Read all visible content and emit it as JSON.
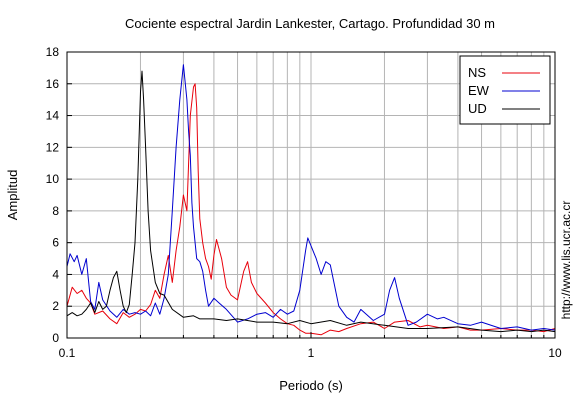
{
  "chart_data": {
    "type": "line",
    "title": "Cociente espectral Jardin Lankester, Cartago. Profundidad 30 m",
    "xlabel": "Periodo (s)",
    "ylabel": "Amplitud",
    "xscale": "log",
    "xlim": [
      0.1,
      10
    ],
    "ylim": [
      0,
      18
    ],
    "x_tick_labels": [
      "0.1",
      "1",
      "10"
    ],
    "y_ticks": [
      0,
      2,
      4,
      6,
      8,
      10,
      12,
      14,
      16,
      18
    ],
    "grid": true,
    "legend_position": "top-right",
    "side_text": "http://www.lis.ucr.ac.cr",
    "colors": {
      "NS": "#e8000b",
      "EW": "#0000d0",
      "UD": "#000000"
    },
    "series": [
      {
        "name": "NS",
        "x": [
          0.1,
          0.105,
          0.11,
          0.115,
          0.12,
          0.125,
          0.13,
          0.14,
          0.15,
          0.16,
          0.17,
          0.18,
          0.19,
          0.2,
          0.21,
          0.22,
          0.23,
          0.24,
          0.25,
          0.26,
          0.27,
          0.28,
          0.29,
          0.3,
          0.31,
          0.32,
          0.33,
          0.335,
          0.34,
          0.345,
          0.35,
          0.36,
          0.37,
          0.38,
          0.39,
          0.4,
          0.41,
          0.43,
          0.45,
          0.47,
          0.5,
          0.53,
          0.55,
          0.57,
          0.6,
          0.65,
          0.7,
          0.75,
          0.8,
          0.85,
          0.9,
          0.95,
          1.0,
          1.1,
          1.2,
          1.3,
          1.4,
          1.6,
          1.8,
          2.0,
          2.2,
          2.5,
          2.8,
          3.0,
          3.5,
          4.0,
          4.5,
          5.0,
          6.0,
          7.0,
          8.0,
          9.0,
          10.0
        ],
        "y": [
          2.0,
          3.2,
          2.8,
          3.0,
          2.5,
          2.2,
          1.5,
          1.7,
          1.2,
          0.9,
          1.6,
          1.3,
          1.5,
          1.8,
          1.7,
          2.1,
          3.0,
          2.5,
          4.0,
          5.2,
          3.5,
          5.5,
          7.0,
          9.0,
          8.0,
          14.0,
          15.8,
          16.0,
          14.5,
          10.5,
          7.5,
          6.0,
          5.0,
          4.5,
          3.7,
          5.2,
          6.2,
          5.0,
          3.2,
          2.7,
          2.4,
          4.2,
          4.8,
          3.5,
          2.8,
          2.2,
          1.6,
          1.2,
          0.9,
          0.8,
          0.5,
          0.3,
          0.3,
          0.2,
          0.5,
          0.4,
          0.6,
          0.9,
          1.0,
          0.6,
          1.0,
          1.1,
          0.7,
          0.8,
          0.6,
          0.7,
          0.5,
          0.5,
          0.6,
          0.5,
          0.5,
          0.4,
          0.6
        ]
      },
      {
        "name": "EW",
        "x": [
          0.1,
          0.103,
          0.107,
          0.11,
          0.115,
          0.12,
          0.125,
          0.13,
          0.135,
          0.14,
          0.15,
          0.16,
          0.17,
          0.18,
          0.19,
          0.2,
          0.21,
          0.22,
          0.23,
          0.24,
          0.25,
          0.26,
          0.27,
          0.28,
          0.29,
          0.3,
          0.31,
          0.315,
          0.32,
          0.325,
          0.33,
          0.34,
          0.35,
          0.36,
          0.37,
          0.38,
          0.4,
          0.42,
          0.45,
          0.5,
          0.55,
          0.6,
          0.65,
          0.7,
          0.75,
          0.8,
          0.85,
          0.9,
          0.95,
          0.97,
          1.0,
          1.05,
          1.1,
          1.15,
          1.2,
          1.3,
          1.4,
          1.5,
          1.6,
          1.8,
          2.0,
          2.1,
          2.2,
          2.3,
          2.5,
          2.7,
          3.0,
          3.3,
          3.5,
          4.0,
          4.5,
          5.0,
          6.0,
          7.0,
          8.0,
          9.0,
          10.0
        ],
        "y": [
          4.5,
          5.3,
          4.8,
          5.2,
          4.0,
          5.0,
          2.3,
          1.8,
          3.5,
          2.4,
          1.7,
          1.3,
          1.8,
          1.5,
          1.6,
          1.5,
          1.7,
          1.4,
          2.2,
          1.5,
          2.5,
          4.0,
          8.0,
          12.0,
          15.0,
          17.2,
          15.0,
          13.0,
          11.5,
          8.5,
          7.0,
          5.0,
          4.8,
          4.2,
          3.0,
          2.0,
          2.5,
          2.2,
          1.8,
          1.0,
          1.2,
          1.5,
          1.6,
          1.3,
          1.8,
          1.5,
          1.7,
          3.0,
          5.5,
          6.3,
          5.8,
          5.0,
          4.0,
          4.8,
          4.6,
          2.0,
          1.3,
          1.0,
          1.8,
          1.1,
          1.5,
          3.0,
          3.8,
          2.5,
          0.8,
          1.0,
          1.5,
          1.2,
          1.3,
          0.9,
          0.8,
          1.0,
          0.6,
          0.7,
          0.5,
          0.6,
          0.5
        ]
      },
      {
        "name": "UD",
        "x": [
          0.1,
          0.105,
          0.11,
          0.115,
          0.12,
          0.125,
          0.13,
          0.135,
          0.14,
          0.145,
          0.15,
          0.155,
          0.16,
          0.165,
          0.17,
          0.175,
          0.18,
          0.185,
          0.19,
          0.195,
          0.2,
          0.203,
          0.206,
          0.21,
          0.215,
          0.22,
          0.23,
          0.24,
          0.25,
          0.27,
          0.3,
          0.33,
          0.35,
          0.4,
          0.45,
          0.5,
          0.6,
          0.7,
          0.8,
          0.9,
          1.0,
          1.2,
          1.4,
          1.6,
          2.0,
          2.5,
          3.0,
          4.0,
          5.0,
          6.0,
          7.0,
          8.0,
          9.0,
          10.0
        ],
        "y": [
          1.4,
          1.6,
          1.4,
          1.5,
          1.8,
          2.2,
          1.6,
          2.3,
          1.8,
          2.0,
          3.0,
          3.8,
          4.2,
          3.0,
          2.0,
          1.6,
          2.1,
          4.0,
          6.0,
          10.0,
          15.5,
          16.8,
          15.0,
          12.0,
          8.0,
          5.5,
          3.5,
          2.8,
          2.7,
          1.8,
          1.3,
          1.4,
          1.2,
          1.2,
          1.1,
          1.2,
          1.0,
          1.0,
          0.9,
          1.1,
          0.9,
          1.1,
          0.8,
          1.0,
          0.8,
          0.6,
          0.6,
          0.7,
          0.5,
          0.4,
          0.5,
          0.4,
          0.5,
          0.4
        ]
      }
    ]
  }
}
